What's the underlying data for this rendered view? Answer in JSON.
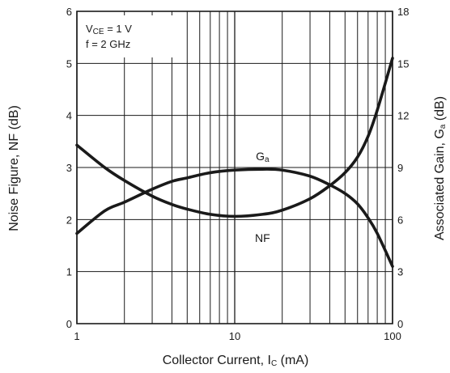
{
  "chart_data": {
    "type": "line",
    "xlabel": {
      "main": "Collector Current, I",
      "sub": "C",
      "unit": " (mA)"
    },
    "ylabel_left": "Noise Figure, NF (dB)",
    "ylabel_right": {
      "main": "Associated Gain, G",
      "sub": "a",
      "unit": " (dB)"
    },
    "x_scale": "log",
    "xlim": [
      1,
      100
    ],
    "ylim_left": [
      0,
      6
    ],
    "ylim_right": [
      0,
      18
    ],
    "grid": true,
    "x_major_ticks": [
      1,
      10,
      100
    ],
    "x_major_labels": [
      "1",
      "10",
      "100"
    ],
    "x_minor_ticks": [
      2,
      3,
      4,
      5,
      6,
      7,
      8,
      9,
      20,
      30,
      40,
      50,
      60,
      70,
      80,
      90
    ],
    "y_left_ticks": [
      0,
      1,
      2,
      3,
      4,
      5,
      6
    ],
    "y_left_labels": [
      "0",
      "1",
      "2",
      "3",
      "4",
      "5",
      "6"
    ],
    "y_right_ticks": [
      0,
      3,
      6,
      9,
      12,
      15,
      18
    ],
    "y_right_labels": [
      "0",
      "3",
      "6",
      "9",
      "12",
      "15",
      "18"
    ],
    "conditions": {
      "line1": {
        "prefix": "V",
        "sub": "CE",
        "rest": " = 1 V"
      },
      "line2": "f = 2 GHz"
    },
    "series": [
      {
        "name": "NF",
        "axis": "left",
        "x": [
          1,
          1.5,
          2,
          3,
          4,
          5,
          7,
          10,
          15,
          20,
          30,
          40,
          50,
          60,
          70,
          80,
          100
        ],
        "values": [
          3.43,
          3.0,
          2.75,
          2.45,
          2.29,
          2.2,
          2.1,
          2.06,
          2.1,
          2.18,
          2.4,
          2.65,
          2.9,
          3.2,
          3.6,
          4.1,
          5.1
        ]
      },
      {
        "name": "Ga",
        "axis": "right",
        "x": [
          1,
          1.5,
          2,
          3,
          4,
          5,
          7,
          10,
          15,
          20,
          30,
          40,
          50,
          60,
          70,
          80,
          100
        ],
        "values": [
          5.2,
          6.5,
          7.0,
          7.75,
          8.2,
          8.4,
          8.7,
          8.85,
          8.9,
          8.85,
          8.5,
          8.0,
          7.5,
          6.9,
          6.1,
          5.2,
          3.3
        ]
      }
    ],
    "curve_labels": [
      {
        "series": "Ga",
        "main": "G",
        "sub": "a",
        "x": 15,
        "y_left": 3.22
      },
      {
        "series": "NF",
        "main": "NF",
        "sub": "",
        "x": 15,
        "y_left": 1.65
      }
    ],
    "colors": {
      "curve": "#1a1a1a",
      "grid": "#1a1a1a",
      "background": "#ffffff"
    }
  }
}
